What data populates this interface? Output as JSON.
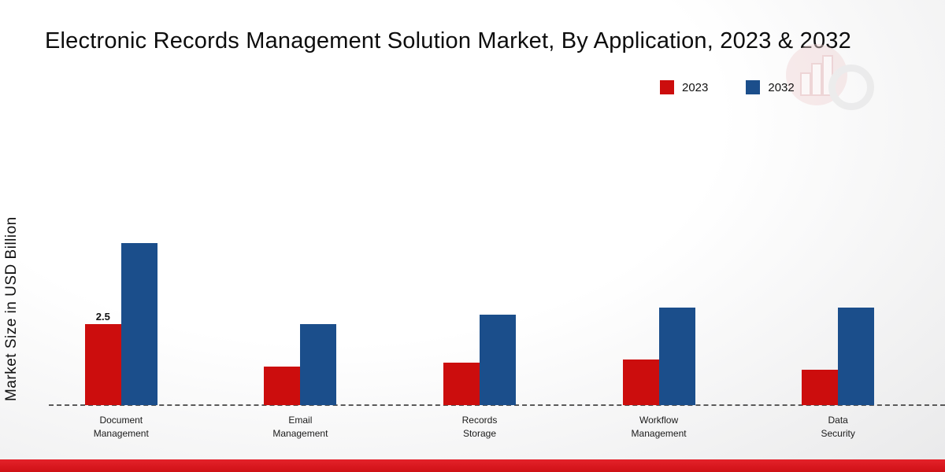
{
  "title": "Electronic Records Management Solution Market, By Application, 2023 & 2032",
  "ylabel": "Market Size in USD Billion",
  "legend": [
    {
      "label": "2023",
      "color": "#cc0d0d"
    },
    {
      "label": "2032",
      "color": "#1b4e8b"
    }
  ],
  "chart_data": {
    "type": "bar",
    "title": "Electronic Records Management Solution Market, By Application, 2023 & 2032",
    "xlabel": "",
    "ylabel": "Market Size in USD Billion",
    "categories": [
      "Document Management",
      "Email Management",
      "Records Storage",
      "Workflow Management",
      "Data Security"
    ],
    "series": [
      {
        "name": "2023",
        "color": "#cc0d0d",
        "values": [
          2.5,
          1.2,
          1.3,
          1.4,
          1.1
        ]
      },
      {
        "name": "2032",
        "color": "#1b4e8b",
        "values": [
          5.0,
          2.5,
          2.8,
          3.0,
          3.0
        ]
      }
    ],
    "value_labels": [
      {
        "series_index": 0,
        "category_index": 0,
        "text": "2.5"
      }
    ],
    "ylim": [
      0,
      5.5
    ],
    "legend_position": "top-right",
    "grid": false,
    "baseline_style": "dashed"
  }
}
